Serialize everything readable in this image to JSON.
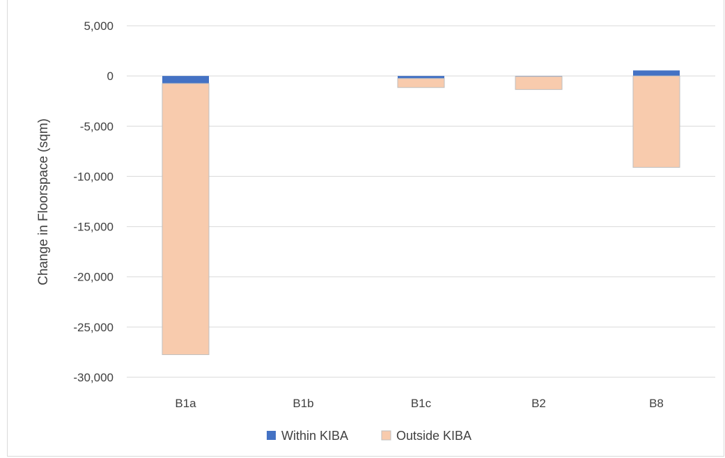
{
  "chart_data": {
    "type": "bar",
    "stacked": true,
    "categories": [
      "B1a",
      "B1b",
      "B1c",
      "B2",
      "B8"
    ],
    "series": [
      {
        "name": "Within KIBA",
        "values": [
          -750,
          0,
          -250,
          -50,
          550
        ],
        "color": "#4472c4"
      },
      {
        "name": "Outside KIBA",
        "values": [
          -27000,
          0,
          -900,
          -1300,
          -9100
        ],
        "color": "#f8cbad"
      }
    ],
    "ylabel": "Change in Floorspace (sqm)",
    "xlabel": "",
    "ylim": [
      -30000,
      5000
    ],
    "yticks": [
      5000,
      0,
      -5000,
      -10000,
      -15000,
      -20000,
      -25000,
      -30000
    ],
    "ytick_labels": [
      "5,000",
      "0",
      "-5,000",
      "-10,000",
      "-15,000",
      "-20,000",
      "-25,000",
      "-30,000"
    ],
    "grid": true,
    "legend_position": "bottom"
  }
}
